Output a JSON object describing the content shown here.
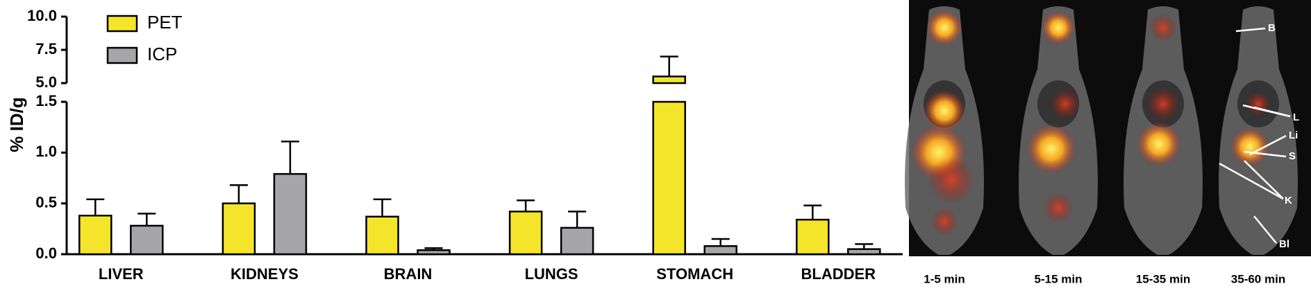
{
  "chart_data": {
    "type": "bar",
    "ylabel": "% ID/g",
    "categories": [
      "LIVER",
      "KIDNEYS",
      "BRAIN",
      "LUNGS",
      "STOMACH",
      "BLADDER"
    ],
    "series": [
      {
        "name": "PET",
        "color": "#f5e52a",
        "values": [
          0.38,
          0.5,
          0.37,
          0.42,
          5.5,
          0.34
        ],
        "errors": [
          0.16,
          0.18,
          0.17,
          0.11,
          1.5,
          0.14
        ]
      },
      {
        "name": "ICP",
        "color": "#a6a6a8",
        "values": [
          0.28,
          0.79,
          0.04,
          0.26,
          0.08,
          0.05
        ],
        "errors": [
          0.12,
          0.32,
          0.02,
          0.16,
          0.07,
          0.05
        ]
      }
    ],
    "ylim": [
      0,
      10
    ],
    "ybreak": [
      1.5,
      5.0
    ],
    "yticks": [
      {
        "value": 0,
        "label": "0.0"
      },
      0.5,
      {
        "value": 1,
        "label": "1.0"
      },
      1.5,
      {
        "value": 5,
        "label": "5.0"
      },
      7.5,
      {
        "value": 10,
        "label": "10.0"
      }
    ],
    "legend": "upper left"
  },
  "panel": {
    "time_labels": [
      "1-5 min",
      "5-15 min",
      "15-35 min",
      "35-60 min"
    ],
    "annotations": [
      "B",
      "L",
      "Li",
      "S",
      "K",
      "Bl"
    ]
  }
}
